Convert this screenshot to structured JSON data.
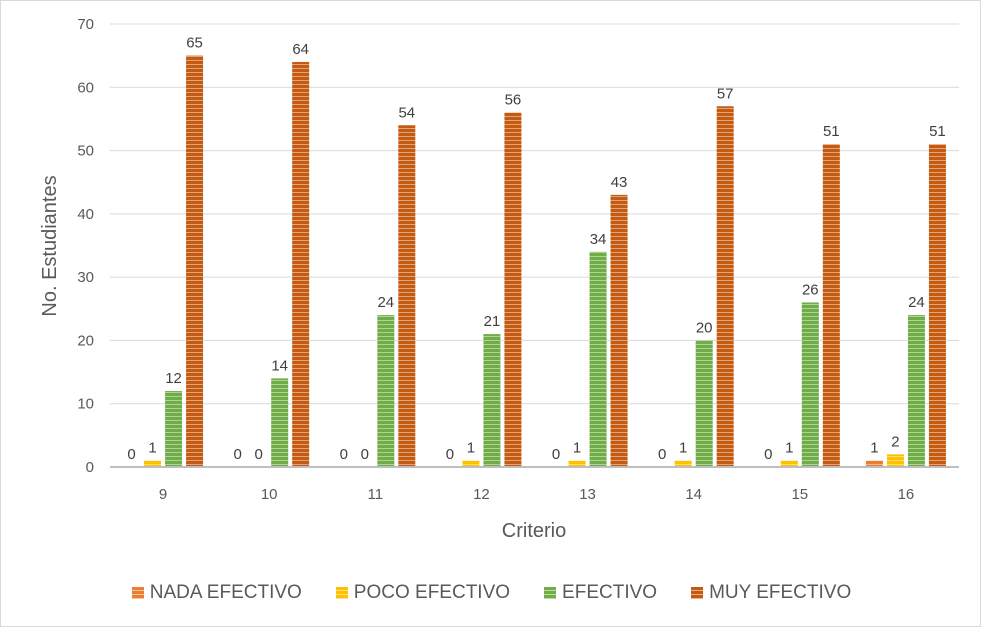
{
  "chart_data": {
    "type": "bar",
    "title": "",
    "xlabel": "Criterio",
    "ylabel": "No. Estudiantes",
    "ylim": [
      0,
      70
    ],
    "yticks": [
      0,
      10,
      20,
      30,
      40,
      50,
      60,
      70
    ],
    "grid": true,
    "legend_position": "bottom",
    "categories": [
      "9",
      "10",
      "11",
      "12",
      "13",
      "14",
      "15",
      "16"
    ],
    "series": [
      {
        "name": "NADA EFECTIVO",
        "color": "#ed7d31",
        "values": [
          0,
          0,
          0,
          0,
          0,
          0,
          0,
          1
        ]
      },
      {
        "name": "POCO EFECTIVO",
        "color": "#ffc000",
        "values": [
          1,
          0,
          0,
          1,
          1,
          1,
          1,
          2
        ]
      },
      {
        "name": "EFECTIVO",
        "color": "#70ad47",
        "values": [
          12,
          14,
          24,
          21,
          34,
          20,
          26,
          24
        ]
      },
      {
        "name": "MUY EFECTIVO",
        "color": "#c55a11",
        "values": [
          65,
          64,
          54,
          56,
          43,
          57,
          51,
          51
        ]
      }
    ],
    "data_labels": [
      [
        "0",
        "0",
        "0",
        "0",
        "0",
        "0",
        "0",
        "1"
      ],
      [
        "1",
        "0",
        "0",
        "1",
        "1",
        "1",
        "1",
        "2"
      ],
      [
        "12",
        "14",
        "24",
        "21",
        "34",
        "20",
        "26",
        "24"
      ],
      [
        "65",
        "64",
        "54",
        "56",
        "43",
        "57",
        "51",
        "51"
      ]
    ]
  }
}
